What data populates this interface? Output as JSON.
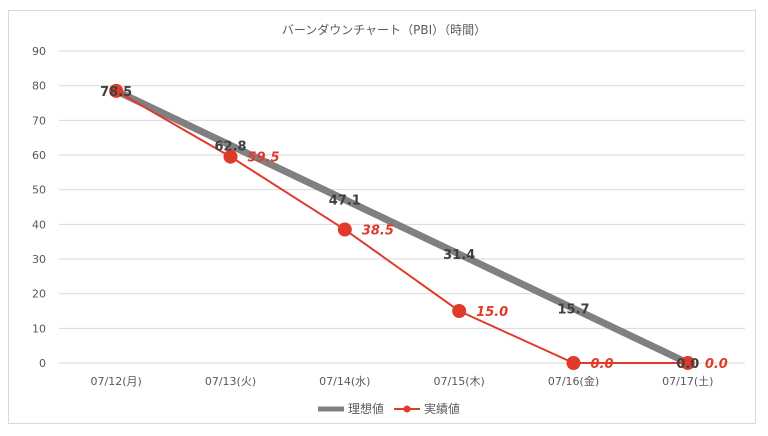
{
  "chart_data": {
    "type": "line",
    "title": "バーンダウンチャート（PBI）（時間）",
    "categories": [
      "07/12(月)",
      "07/13(火)",
      "07/14(水)",
      "07/15(木)",
      "07/16(金)",
      "07/17(土)"
    ],
    "ylim": [
      0,
      90
    ],
    "yticks": [
      0,
      10,
      20,
      30,
      40,
      50,
      60,
      70,
      80,
      90
    ],
    "grid": true,
    "legend_position": "bottom",
    "series": [
      {
        "name": "理想値",
        "values": [
          78.5,
          62.8,
          47.1,
          31.4,
          15.7,
          0.0
        ],
        "labels": [
          "78.5",
          "62.8",
          "47.1",
          "31.4",
          "15.7",
          "0.0"
        ],
        "color": "#808080"
      },
      {
        "name": "実績値",
        "values": [
          78.5,
          59.5,
          38.5,
          15.0,
          0.0,
          0.0
        ],
        "labels": [
          "",
          "59.5",
          "38.5",
          "15.0",
          "0.0",
          "0.0"
        ],
        "color": "#e03a2b"
      }
    ]
  }
}
